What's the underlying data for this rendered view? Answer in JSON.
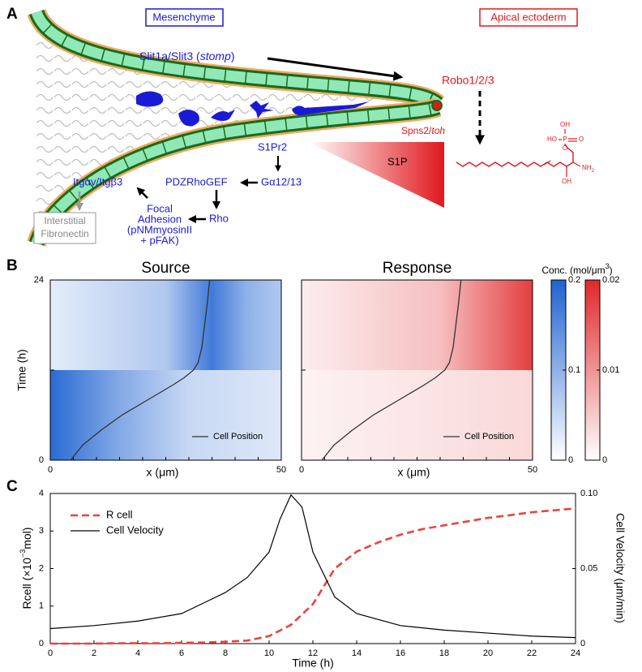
{
  "panel_a": {
    "label": "A",
    "mesenchyme": "Mesenchyme",
    "apical_ectoderm": "Apical ectoderm",
    "slit": {
      "text": "Slit1a/Slit3 (",
      "italic": "stomp",
      "after": ")"
    },
    "robo": "Robo1/2/3",
    "spns2": {
      "text": "Spns2/",
      "italic": "toh"
    },
    "s1p": "S1P",
    "s1pr2": "S1Pr2",
    "galpha": "Gα12/13",
    "pdzrhogef": "PDZRhoGEF",
    "rho": "Rho",
    "integrin": "Itgαv/Itgβ3",
    "focal_adhesion": [
      "Focal",
      "Adhesion",
      "(pNMmyosinII",
      "+ pFAK)"
    ],
    "fibronectin": [
      "Interstitial",
      "Fibronectin"
    ],
    "molecule": {
      "oh_top": "OH",
      "ho": "HO",
      "p": "P",
      "o_double": "O",
      "o_link": "O",
      "nh2": {
        "text": "NH",
        "sub": "2"
      },
      "oh_bottom": "OH"
    }
  },
  "chart_data": [
    {
      "type": "heatmap",
      "label": "B",
      "x_label": "x (μm)",
      "y_label": "Time (h)",
      "xlim": [
        0,
        50
      ],
      "xticks": [
        0,
        50
      ],
      "x_minor_ticks": [
        5,
        10,
        15,
        20,
        25,
        30,
        35,
        40,
        45
      ],
      "ylim": [
        0,
        24
      ],
      "yticks": [
        0,
        24
      ],
      "y_minor_ticks": [
        12
      ],
      "heatmaps": [
        {
          "title": "Source"
        },
        {
          "title": "Response"
        }
      ],
      "cell_position": {
        "name": "Cell Position",
        "color": "#333333",
        "x": [
          4.4,
          7,
          11,
          15.5,
          21,
          26.5,
          29,
          31,
          32,
          32.8,
          33.4,
          34,
          34.5
        ],
        "t": [
          0,
          2,
          4,
          6,
          8,
          10,
          11,
          12,
          13,
          15,
          18,
          21,
          24
        ]
      },
      "colorbar_label": {
        "text": "Conc. (mol/μm",
        "sup": "3",
        "after": ")"
      },
      "colorbars": [
        {
          "lim": [
            0,
            0.2
          ],
          "ticks": [
            0,
            0.1,
            0.2
          ],
          "colormap": [
            "#ffffff",
            "#1f63d1"
          ]
        },
        {
          "lim": [
            0,
            0.02
          ],
          "ticks": [
            0,
            0.01,
            0.02
          ],
          "colormap": [
            "#ffffff",
            "#e0282a"
          ]
        }
      ]
    },
    {
      "type": "line",
      "label": "C",
      "x_label": "Time (h)",
      "y_label": {
        "text": "Rcell (×10",
        "sup": "−3",
        "after": "mol)"
      },
      "y2_label": "Cell Velocity (μm/min)",
      "xlim": [
        0,
        24
      ],
      "xticks": [
        0,
        2,
        4,
        6,
        8,
        10,
        12,
        14,
        16,
        18,
        20,
        22,
        24
      ],
      "ylim": [
        0,
        4
      ],
      "yticks": [
        0,
        1,
        2,
        3,
        4
      ],
      "y2lim": [
        0,
        0.1
      ],
      "y2ticks": [
        0,
        0.05,
        {
          "value": 0.1,
          "label": "0.10"
        }
      ],
      "legend": "upper left",
      "series": [
        {
          "name": "R cell",
          "color": "#e8443f",
          "dash": true,
          "x": [
            0,
            1,
            2,
            3,
            4,
            5,
            6,
            7,
            8,
            9,
            10,
            11,
            12,
            13,
            14,
            15,
            16,
            17,
            18,
            19,
            20,
            21,
            22,
            23,
            24
          ],
          "values": [
            0,
            0,
            0,
            0.01,
            0.01,
            0.01,
            0.02,
            0.03,
            0.05,
            0.08,
            0.2,
            0.5,
            1.05,
            2.0,
            2.45,
            2.7,
            2.9,
            3.05,
            3.15,
            3.25,
            3.35,
            3.42,
            3.5,
            3.55,
            3.6
          ]
        },
        {
          "name": "Cell Velocity",
          "color": "#000000",
          "axis": "y2",
          "x": [
            0,
            2,
            4,
            6,
            8,
            9,
            10,
            10.5,
            11,
            11.5,
            12,
            13,
            14,
            16,
            18,
            20,
            22,
            24
          ],
          "values": [
            0.01,
            0.012,
            0.015,
            0.02,
            0.034,
            0.044,
            0.061,
            0.083,
            0.099,
            0.091,
            0.061,
            0.031,
            0.02,
            0.012,
            0.009,
            0.007,
            0.005,
            0.004
          ]
        }
      ]
    }
  ]
}
